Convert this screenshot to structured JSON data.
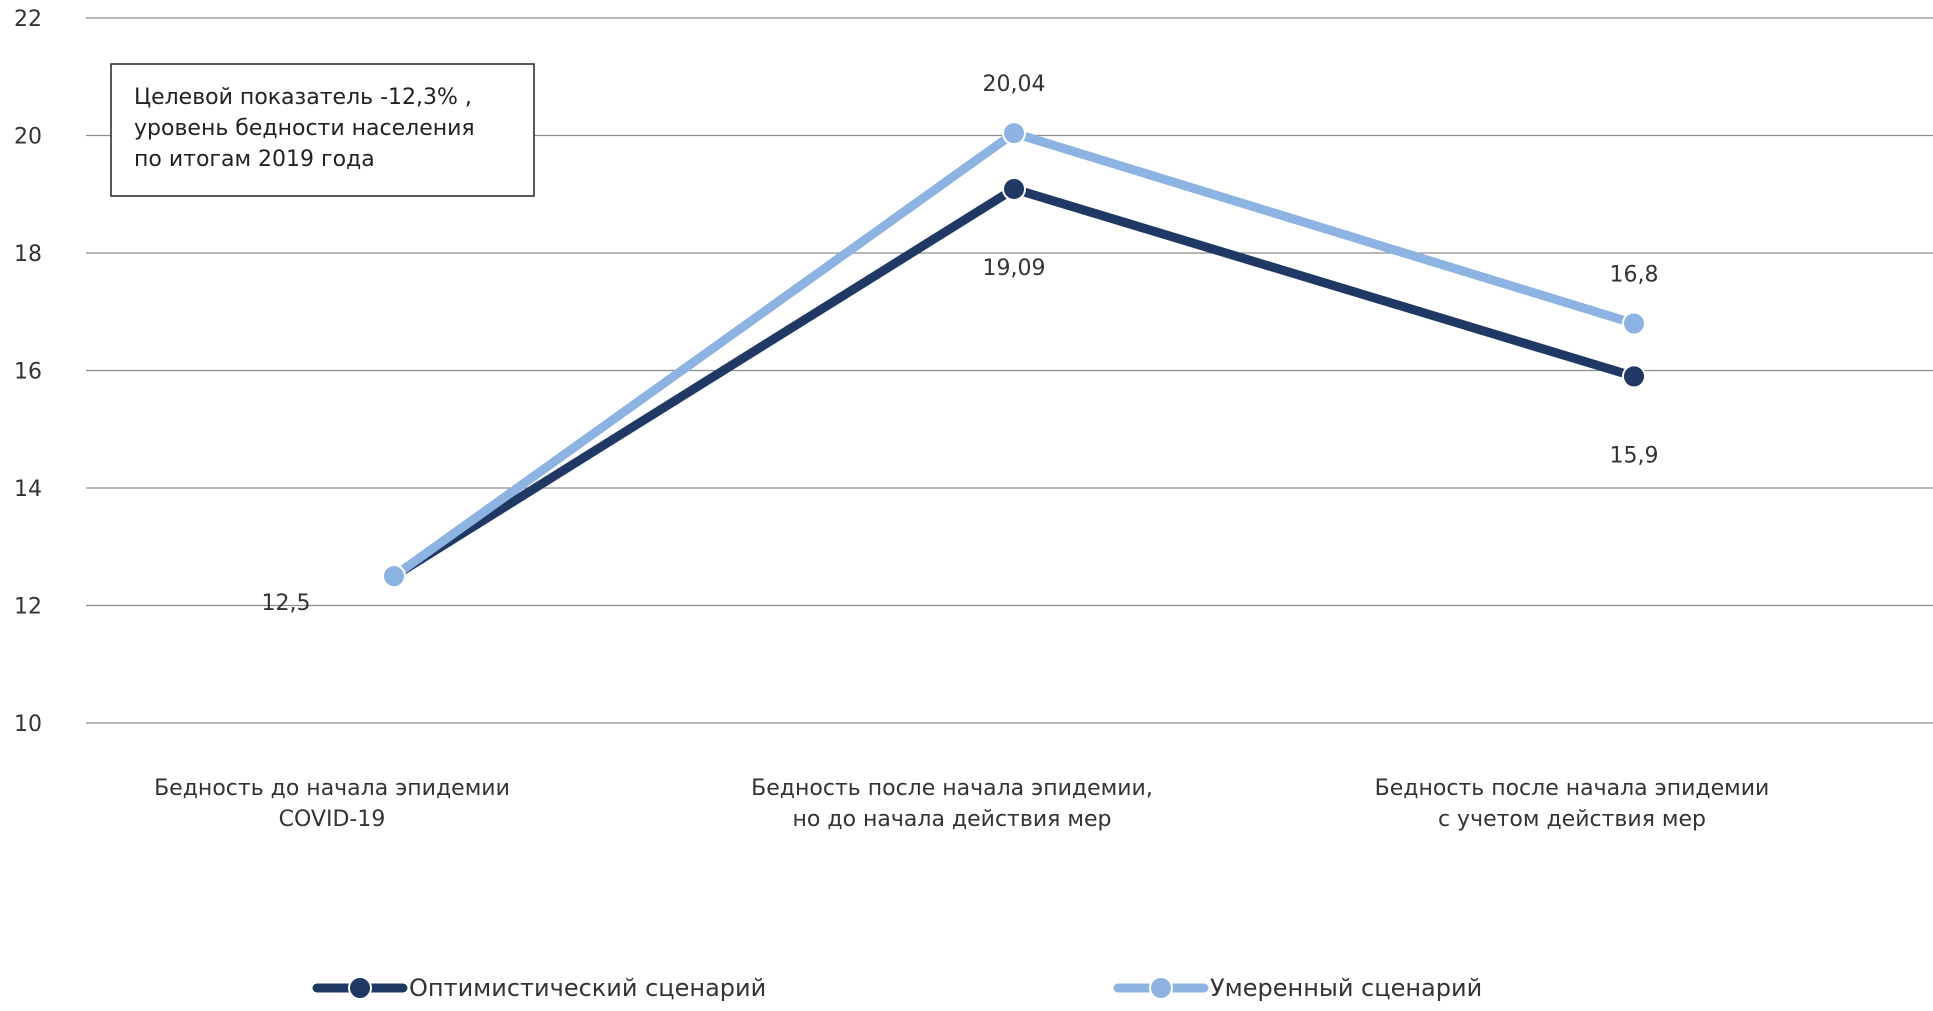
{
  "chart_data": {
    "type": "line",
    "title": "",
    "xlabel": "",
    "ylabel": "",
    "ylim": [
      10,
      22
    ],
    "yticks": [
      10,
      12,
      14,
      16,
      18,
      20,
      22
    ],
    "grid": true,
    "legend_position": "bottom",
    "categories": [
      [
        "Бедность до начала эпидемии",
        "COVID-19"
      ],
      [
        "Бедность после начала эпидемии,",
        "но до начала действия мер"
      ],
      [
        "Бедность после начала эпидемии",
        "с учетом действия мер"
      ]
    ],
    "series": [
      {
        "name": "Оптимистический сценарий",
        "color": "#1f3864",
        "values": [
          12.5,
          19.09,
          15.9
        ],
        "labels": [
          "12,5",
          "19,09",
          "15,9"
        ],
        "label_position": [
          "below-left",
          "below",
          "below"
        ]
      },
      {
        "name": "Умеренный сценарий",
        "color": "#8db3e2",
        "values": [
          12.5,
          20.04,
          16.8
        ],
        "labels": [
          "",
          "20,04",
          "16,8"
        ],
        "label_position": [
          "none",
          "above",
          "above"
        ]
      }
    ],
    "annotation": {
      "lines": [
        "Целевой показатель -12,3% ,",
        "уровень бедности населения",
        "по итогам 2019 года"
      ]
    }
  }
}
